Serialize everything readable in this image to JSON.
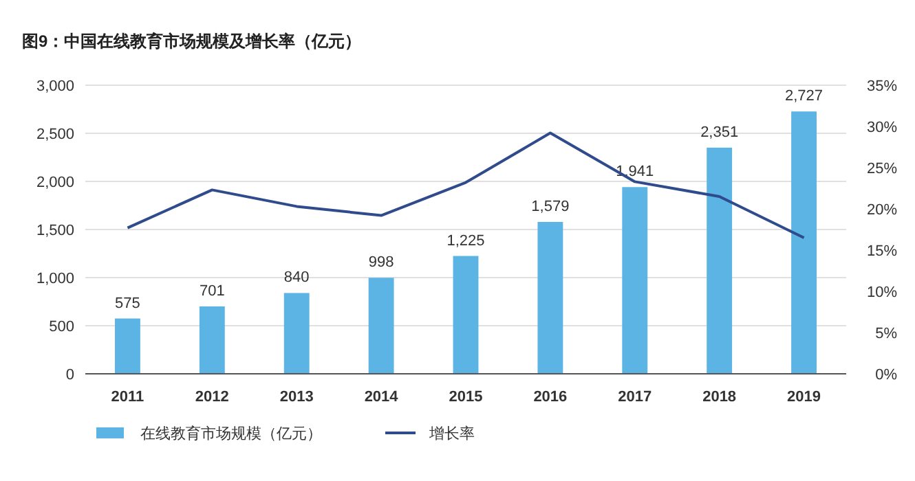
{
  "chart_data": {
    "type": "bar",
    "title": "图9：中国在线教育市场规模及增长率（亿元）",
    "categories": [
      "2011",
      "2012",
      "2013",
      "2014",
      "2015",
      "2016",
      "2017",
      "2018",
      "2019"
    ],
    "series": [
      {
        "name": "在线教育市场规模（亿元）",
        "color": "#5cb4e5",
        "values": [
          575,
          701,
          840,
          998,
          1225,
          1579,
          1941,
          2351,
          2727
        ],
        "value_labels": [
          "575",
          "701",
          "840",
          "998",
          "1,225",
          "1,579",
          "1,941",
          "2,351",
          "2,727"
        ]
      },
      {
        "name": "增长率",
        "type": "line",
        "axis": "y2",
        "color": "#2f4b8c",
        "values": [
          17.7,
          22.3,
          20.3,
          19.2,
          23.2,
          29.2,
          23.3,
          21.5,
          16.5
        ]
      }
    ],
    "ylim": [
      0,
      3000
    ],
    "yticks": [
      {
        "value": 0,
        "label": "0"
      },
      {
        "value": 500,
        "label": "500"
      },
      {
        "value": 1000,
        "label": "1,000"
      },
      {
        "value": 1500,
        "label": "1,500"
      },
      {
        "value": 2000,
        "label": "2,000"
      },
      {
        "value": 2500,
        "label": "2,500"
      },
      {
        "value": 3000,
        "label": "3,000"
      }
    ],
    "y2lim": [
      0,
      35
    ],
    "y2ticks": [
      {
        "value": 0,
        "label": "0%"
      },
      {
        "value": 5,
        "label": "5%"
      },
      {
        "value": 10,
        "label": "10%"
      },
      {
        "value": 15,
        "label": "15%"
      },
      {
        "value": 20,
        "label": "20%"
      },
      {
        "value": 25,
        "label": "25%"
      },
      {
        "value": 30,
        "label": "30%"
      },
      {
        "value": 35,
        "label": "35%"
      }
    ],
    "grid": "y",
    "legend": "bottom",
    "marker": "none"
  }
}
